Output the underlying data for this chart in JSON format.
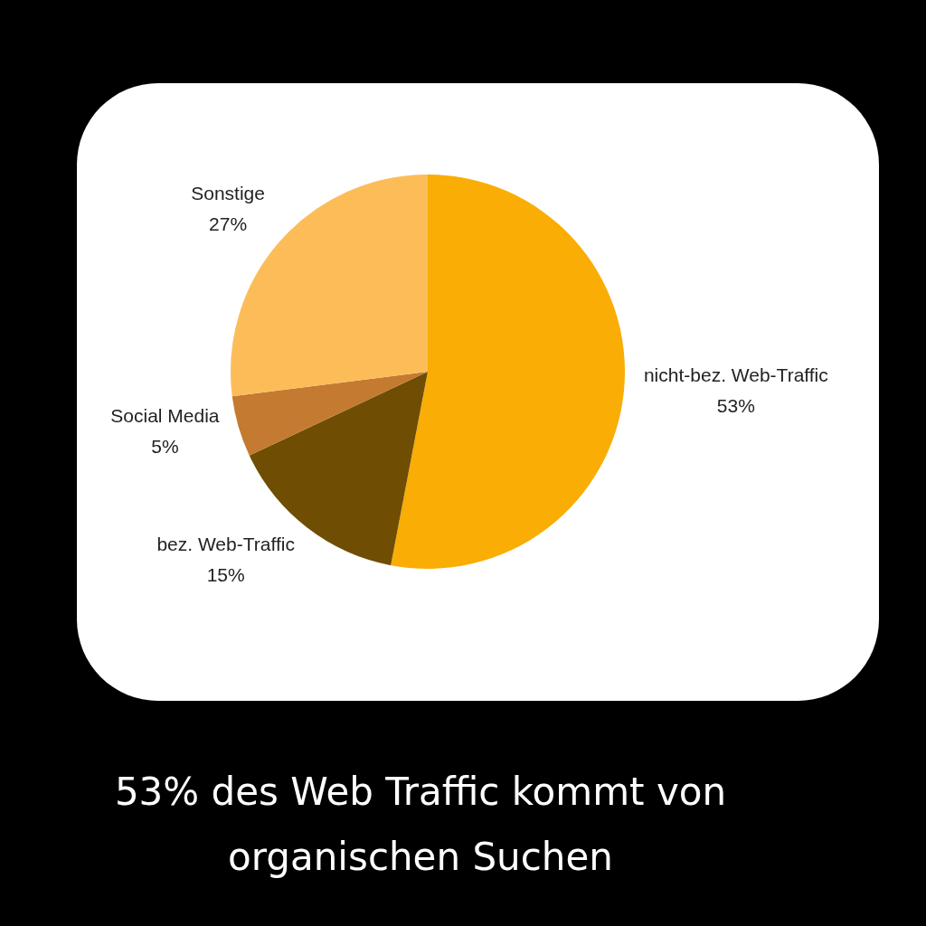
{
  "chart_data": {
    "type": "pie",
    "title": "53% des Web Traffic kommt von organischen Suchen",
    "categories": [
      "nicht-bez. Web-Traffic",
      "bez. Web-Traffic",
      "Social Media",
      "Sonstige"
    ],
    "values": [
      53,
      15,
      5,
      27
    ],
    "colors": [
      "#f9ad05",
      "#6f4e03",
      "#c47a30",
      "#fcbd59"
    ],
    "value_labels": [
      "53%",
      "15%",
      "5%",
      "27%"
    ],
    "legend": false
  }
}
